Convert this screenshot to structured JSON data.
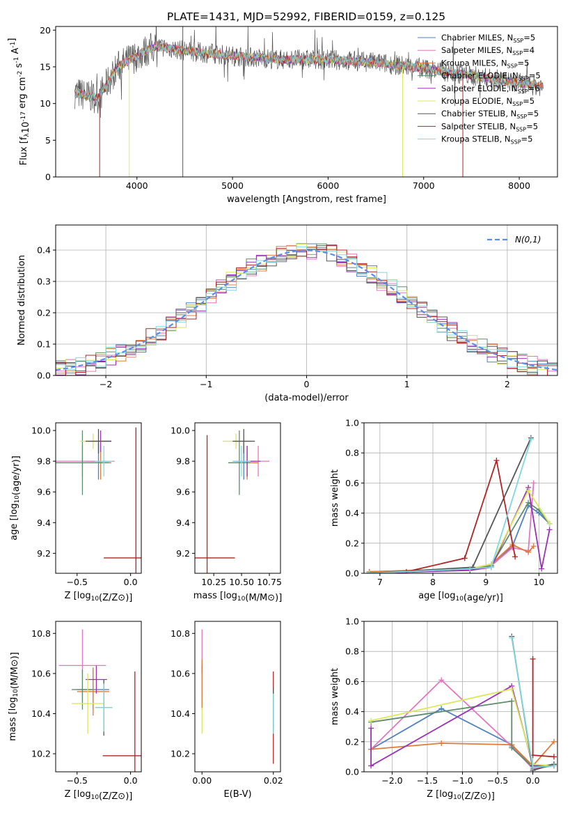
{
  "figure": {
    "title": "PLATE=1431, MJD=52992, FIBERID=0159, z=0.125",
    "colors": {
      "Chabrier MILES": "#4f81bd",
      "Salpeter MILES": "#e377c2",
      "Kroupa MILES": "#e07b39",
      "Chabrier ELODIE": "#5e8c6a",
      "Salpeter ELODIE": "#9b30b5",
      "Kroupa ELODIE": "#dbe85a",
      "Chabrier STELIB": "#555555",
      "Salpeter STELIB": "#b22222",
      "Kroupa STELIB": "#7fd8e0"
    }
  },
  "chart_data": [
    {
      "id": "spectrum",
      "type": "line",
      "xlabel": "wavelength [Angstrom, rest frame]",
      "ylabel": "Flux [f_λ10^-17 erg cm^-2 s^-1 A^-1]",
      "xlim": [
        3150,
        8400
      ],
      "ylim": [
        0,
        20.5
      ],
      "xticks": [
        4000,
        5000,
        6000,
        7000,
        8000
      ],
      "yticks": [
        0,
        5,
        10,
        15,
        20
      ],
      "legend_position": "right",
      "legend": [
        {
          "model": "Chabrier MILES",
          "label": "Chabrier MILES, N",
          "sub": "SSP",
          "value": "=5"
        },
        {
          "model": "Salpeter MILES",
          "label": "Salpeter MILES, N",
          "sub": "SSP",
          "value": "=4"
        },
        {
          "model": "Kroupa MILES",
          "label": "Kroupa MILES, N",
          "sub": "SSP",
          "value": "=5"
        },
        {
          "model": "Chabrier ELODIE",
          "label": "Chabrier ELODIE, N",
          "sub": "SSP",
          "value": "=5"
        },
        {
          "model": "Salpeter ELODIE",
          "label": "Salpeter ELODIE, N",
          "sub": "SSP",
          "value": "=6"
        },
        {
          "model": "Kroupa ELODIE",
          "label": "Kroupa ELODIE, N",
          "sub": "SSP",
          "value": "=5"
        },
        {
          "model": "Chabrier STELIB",
          "label": "Chabrier STELIB, N",
          "sub": "SSP",
          "value": "=5"
        },
        {
          "model": "Salpeter STELIB",
          "label": "Salpeter STELIB, N",
          "sub": "SSP",
          "value": "=5"
        },
        {
          "model": "Kroupa STELIB",
          "label": "Kroupa STELIB, N",
          "sub": "SSP",
          "value": "=5"
        }
      ],
      "continuum": {
        "x": [
          3350,
          3500,
          3600,
          3700,
          3800,
          3900,
          4000,
          4100,
          4200,
          4500,
          5000,
          5500,
          6000,
          6500,
          7000,
          7500,
          8000,
          8200
        ],
        "y": [
          11.5,
          11.0,
          10.8,
          13.0,
          15.0,
          15.8,
          16.5,
          17.2,
          17.8,
          17.2,
          16.5,
          16.0,
          16.0,
          15.6,
          14.8,
          13.8,
          12.8,
          12.4
        ]
      },
      "observed_range": [
        3350,
        8250
      ],
      "spikes": [
        {
          "x": 3610,
          "min": 0,
          "max": 12,
          "model": "Salpeter STELIB"
        },
        {
          "x": 3920,
          "min": 0,
          "max": 16,
          "model": "Kroupa ELODIE"
        },
        {
          "x": 4480,
          "min": 0,
          "max": 20.5,
          "model": "Chabrier STELIB"
        },
        {
          "x": 6780,
          "min": 0,
          "max": 15,
          "model": "Kroupa ELODIE"
        },
        {
          "x": 7410,
          "min": 0,
          "max": 14,
          "model": "Salpeter STELIB"
        }
      ]
    },
    {
      "id": "residuals",
      "type": "histogram",
      "xlabel": "(data-model)/error",
      "ylabel": "Normed distribution",
      "xlim": [
        -2.5,
        2.5
      ],
      "ylim": [
        0,
        0.48
      ],
      "xticks": [
        -2,
        -1,
        0,
        1,
        2
      ],
      "yticks": [
        0.0,
        0.1,
        0.2,
        0.3,
        0.4
      ],
      "grid": true,
      "bin_width": 0.1,
      "reference": {
        "label": "N(0,1)",
        "color": "#5b8def",
        "style": "dashed",
        "legend_position": "top-right"
      },
      "envelope_scale": 1.0
    },
    {
      "id": "z_age",
      "type": "errorbar",
      "xlabel": "Z [log10(Z/Z⊙)]",
      "ylabel": "age  [log10(age/yr)]",
      "xlim": [
        -0.7,
        0.1
      ],
      "ylim": [
        9.07,
        10.05
      ],
      "xticks": [
        -0.5,
        0.0
      ],
      "yticks": [
        9.2,
        9.4,
        9.6,
        9.8,
        10.0
      ],
      "points": [
        {
          "model": "Chabrier MILES",
          "x": -0.3,
          "xerr": 0.12,
          "y": 9.8,
          "yerr": 0.12
        },
        {
          "model": "Salpeter MILES",
          "x": -0.45,
          "xerr": 0.3,
          "y": 9.8,
          "yerr": 0.1
        },
        {
          "model": "Kroupa MILES",
          "x": -0.28,
          "xerr": 0.1,
          "y": 9.79,
          "yerr": 0.11
        },
        {
          "model": "Chabrier ELODIE",
          "x": -0.45,
          "xerr": 0.25,
          "y": 9.79,
          "yerr": 0.21
        },
        {
          "model": "Salpeter ELODIE",
          "x": -0.28,
          "xerr": 0.1,
          "y": 9.93,
          "yerr": 0.07
        },
        {
          "model": "Kroupa ELODIE",
          "x": -0.35,
          "xerr": 0.12,
          "y": 9.93,
          "yerr": 0.05
        },
        {
          "model": "Chabrier STELIB",
          "x": -0.3,
          "xerr": 0.12,
          "y": 9.93,
          "yerr": 0.08
        },
        {
          "model": "Salpeter STELIB",
          "x": 0.05,
          "xerr": 0.3,
          "y": 9.17,
          "yerr": 0.85
        },
        {
          "model": "Kroupa STELIB",
          "x": -0.25,
          "xerr": 0.08,
          "y": 9.8,
          "yerr": 0.1
        }
      ]
    },
    {
      "id": "mass_age",
      "type": "errorbar",
      "xlabel": "mass [log10(M/M⊙)]",
      "ylabel": "",
      "xlim": [
        10.08,
        10.85
      ],
      "ylim": [
        9.07,
        10.05
      ],
      "xticks": [
        10.25,
        10.5,
        10.75
      ],
      "yticks": [
        9.2,
        9.4,
        9.6,
        9.8,
        10.0
      ],
      "points": [
        {
          "model": "Chabrier MILES",
          "x": 10.52,
          "xerr": 0.1,
          "y": 9.8,
          "yerr": 0.12
        },
        {
          "model": "Salpeter MILES",
          "x": 10.65,
          "xerr": 0.1,
          "y": 9.8,
          "yerr": 0.1
        },
        {
          "model": "Kroupa MILES",
          "x": 10.55,
          "xerr": 0.1,
          "y": 9.79,
          "yerr": 0.11
        },
        {
          "model": "Chabrier ELODIE",
          "x": 10.48,
          "xerr": 0.1,
          "y": 9.79,
          "yerr": 0.21
        },
        {
          "model": "Salpeter ELODIE",
          "x": 10.55,
          "xerr": 0.12,
          "y": 9.8,
          "yerr": 0.1
        },
        {
          "model": "Kroupa ELODIE",
          "x": 10.45,
          "xerr": 0.12,
          "y": 9.93,
          "yerr": 0.05
        },
        {
          "model": "Chabrier STELIB",
          "x": 10.52,
          "xerr": 0.1,
          "y": 9.93,
          "yerr": 0.08
        },
        {
          "model": "Salpeter STELIB",
          "x": 10.19,
          "xerr": 0.25,
          "y": 9.17,
          "yerr": 0.8
        },
        {
          "model": "Kroupa STELIB",
          "x": 10.5,
          "xerr": 0.08,
          "y": 9.8,
          "yerr": 0.1
        }
      ]
    },
    {
      "id": "age_weight",
      "type": "line",
      "xlabel": "age  [log10(age/yr)]",
      "ylabel": "mass weight",
      "xlim": [
        6.7,
        10.35
      ],
      "ylim": [
        0,
        1.0
      ],
      "xticks": [
        7,
        8,
        9,
        10
      ],
      "yticks": [
        0.0,
        0.2,
        0.4,
        0.6,
        0.8,
        1.0
      ],
      "grid": true,
      "series": [
        {
          "model": "Chabrier MILES",
          "x": [
            6.8,
            8.7,
            9.1,
            9.5,
            9.8,
            10.0,
            10.2
          ],
          "y": [
            0.01,
            0.03,
            0.05,
            0.18,
            0.45,
            0.4,
            0.33
          ]
        },
        {
          "model": "Salpeter MILES",
          "x": [
            6.8,
            8.7,
            9.1,
            9.5,
            9.8,
            9.9
          ],
          "y": [
            0.01,
            0.02,
            0.05,
            0.17,
            0.15,
            0.6
          ]
        },
        {
          "model": "Kroupa MILES",
          "x": [
            6.8,
            8.7,
            9.1,
            9.5,
            9.8,
            9.9
          ],
          "y": [
            0.01,
            0.03,
            0.06,
            0.19,
            0.14,
            0.18
          ]
        },
        {
          "model": "Chabrier ELODIE",
          "x": [
            6.8,
            8.7,
            9.1,
            9.8,
            10.0,
            10.2
          ],
          "y": [
            0.0,
            0.03,
            0.05,
            0.47,
            0.42,
            0.33
          ]
        },
        {
          "model": "Salpeter ELODIE",
          "x": [
            6.8,
            8.7,
            9.1,
            9.8,
            10.05,
            10.2
          ],
          "y": [
            0.0,
            0.02,
            0.04,
            0.57,
            0.03,
            0.29
          ]
        },
        {
          "model": "Kroupa ELODIE",
          "x": [
            6.8,
            8.7,
            9.1,
            9.8,
            10.2
          ],
          "y": [
            0.0,
            0.03,
            0.06,
            0.55,
            0.33
          ]
        },
        {
          "model": "Chabrier STELIB",
          "x": [
            6.8,
            8.75,
            9.85
          ],
          "y": [
            0.0,
            0.04,
            0.9
          ]
        },
        {
          "model": "Salpeter STELIB",
          "x": [
            7.5,
            8.6,
            9.2,
            9.55
          ],
          "y": [
            0.01,
            0.1,
            0.75,
            0.11
          ]
        },
        {
          "model": "Kroupa STELIB",
          "x": [
            6.8,
            8.7,
            9.1,
            9.85
          ],
          "y": [
            0.0,
            0.03,
            0.04,
            0.89
          ]
        }
      ]
    },
    {
      "id": "z_mass",
      "type": "errorbar",
      "xlabel": "Z [log10(Z/Z⊙)]",
      "ylabel": "mass [log10(M/M⊙)]",
      "xlim": [
        -0.7,
        0.1
      ],
      "ylim": [
        10.11,
        10.86
      ],
      "xticks": [
        -0.5,
        0.0
      ],
      "yticks": [
        10.2,
        10.4,
        10.6,
        10.8
      ],
      "points": [
        {
          "model": "Chabrier MILES",
          "x": -0.35,
          "xerr": 0.15,
          "y": 10.52,
          "yerr": 0.1
        },
        {
          "model": "Salpeter MILES",
          "x": -0.45,
          "xerr": 0.22,
          "y": 10.64,
          "yerr": 0.18
        },
        {
          "model": "Kroupa MILES",
          "x": -0.35,
          "xerr": 0.15,
          "y": 10.51,
          "yerr": 0.12
        },
        {
          "model": "Chabrier ELODIE",
          "x": -0.45,
          "xerr": 0.1,
          "y": 10.52,
          "yerr": 0.1
        },
        {
          "model": "Salpeter ELODIE",
          "x": -0.32,
          "xerr": 0.1,
          "y": 10.57,
          "yerr": 0.07
        },
        {
          "model": "Kroupa ELODIE",
          "x": -0.4,
          "xerr": 0.15,
          "y": 10.45,
          "yerr": 0.15
        },
        {
          "model": "Chabrier STELIB",
          "x": -0.25,
          "xerr": 0.08,
          "y": 10.43,
          "yerr": 0.14
        },
        {
          "model": "Salpeter STELIB",
          "x": 0.04,
          "xerr": 0.3,
          "y": 10.19,
          "yerr": 0.42
        },
        {
          "model": "Kroupa STELIB",
          "x": -0.25,
          "xerr": 0.08,
          "y": 10.43,
          "yerr": 0.12
        }
      ]
    },
    {
      "id": "ebv_mass",
      "type": "errorbar",
      "xlabel": "E(B-V)",
      "ylabel": "",
      "xlim": [
        -0.002,
        0.022
      ],
      "ylim": [
        10.11,
        10.86
      ],
      "xticks": [
        0.0,
        0.02
      ],
      "yticks": [
        10.2,
        10.4,
        10.6,
        10.8
      ],
      "points": [
        {
          "model": "Salpeter MILES",
          "x": 0.0,
          "xerr": 0,
          "y": 10.64,
          "yerr": 0.18
        },
        {
          "model": "Chabrier ELODIE",
          "x": 0.0,
          "xerr": 0,
          "y": 10.52,
          "yerr": 0.1
        },
        {
          "model": "Salpeter ELODIE",
          "x": 0.0,
          "xerr": 0,
          "y": 10.57,
          "yerr": 0.07
        },
        {
          "model": "Kroupa ELODIE",
          "x": 0.0,
          "xerr": 0,
          "y": 10.45,
          "yerr": 0.15
        },
        {
          "model": "Kroupa MILES",
          "x": 0.0,
          "xerr": 0,
          "y": 10.55,
          "yerr": 0.12
        },
        {
          "model": "Salpeter STELIB",
          "x": 0.02,
          "xerr": 0,
          "y": 10.38,
          "yerr": 0.23
        },
        {
          "model": "Chabrier STELIB",
          "x": 0.02,
          "xerr": 0,
          "y": 10.43,
          "yerr": 0.1
        },
        {
          "model": "Kroupa STELIB",
          "x": 0.02,
          "xerr": 0,
          "y": 10.4,
          "yerr": 0.1
        }
      ]
    },
    {
      "id": "z_weight",
      "type": "line",
      "xlabel": "Z [log10(Z/Z⊙)]",
      "ylabel": "mass weight",
      "xlim": [
        -2.4,
        0.35
      ],
      "ylim": [
        0,
        1.0
      ],
      "xticks": [
        -2.0,
        -1.5,
        -1.0,
        -0.5,
        0.0
      ],
      "yticks": [
        0.0,
        0.2,
        0.4,
        0.6,
        0.8,
        1.0
      ],
      "grid": true,
      "series": [
        {
          "model": "Chabrier MILES",
          "x": [
            -2.3,
            -1.3,
            -0.3,
            0.0,
            0.3
          ],
          "y": [
            0.15,
            0.42,
            0.18,
            0.03,
            0.05
          ]
        },
        {
          "model": "Salpeter MILES",
          "x": [
            -2.3,
            -1.3,
            -0.3,
            0.0,
            0.3
          ],
          "y": [
            0.15,
            0.61,
            0.17,
            0.02,
            0.04
          ]
        },
        {
          "model": "Kroupa MILES",
          "x": [
            -2.3,
            -1.3,
            -0.3,
            0.0,
            0.3
          ],
          "y": [
            0.15,
            0.19,
            0.18,
            0.04,
            0.2
          ]
        },
        {
          "model": "Chabrier ELODIE",
          "x": [
            -2.3,
            -0.3,
            -0.3,
            0.0,
            0.3
          ],
          "y": [
            0.33,
            0.47,
            0.16,
            0.03,
            0.04
          ]
        },
        {
          "model": "Salpeter ELODIE",
          "x": [
            -2.3,
            -2.3,
            -0.3,
            0.0,
            0.3
          ],
          "y": [
            0.29,
            0.04,
            0.57,
            0.04,
            0.04
          ]
        },
        {
          "model": "Kroupa ELODIE",
          "x": [
            -2.3,
            -0.3,
            0.0,
            0.3
          ],
          "y": [
            0.34,
            0.55,
            0.05,
            0.04
          ]
        },
        {
          "model": "Chabrier STELIB",
          "x": [
            -0.3,
            0.0,
            0.3
          ],
          "y": [
            0.9,
            0.01,
            0.05
          ]
        },
        {
          "model": "Salpeter STELIB",
          "x": [
            0.0,
            0.0,
            0.3
          ],
          "y": [
            0.75,
            0.11,
            0.1
          ]
        },
        {
          "model": "Kroupa STELIB",
          "x": [
            -0.3,
            0.0,
            0.3
          ],
          "y": [
            0.89,
            0.03,
            0.04
          ]
        }
      ]
    }
  ]
}
